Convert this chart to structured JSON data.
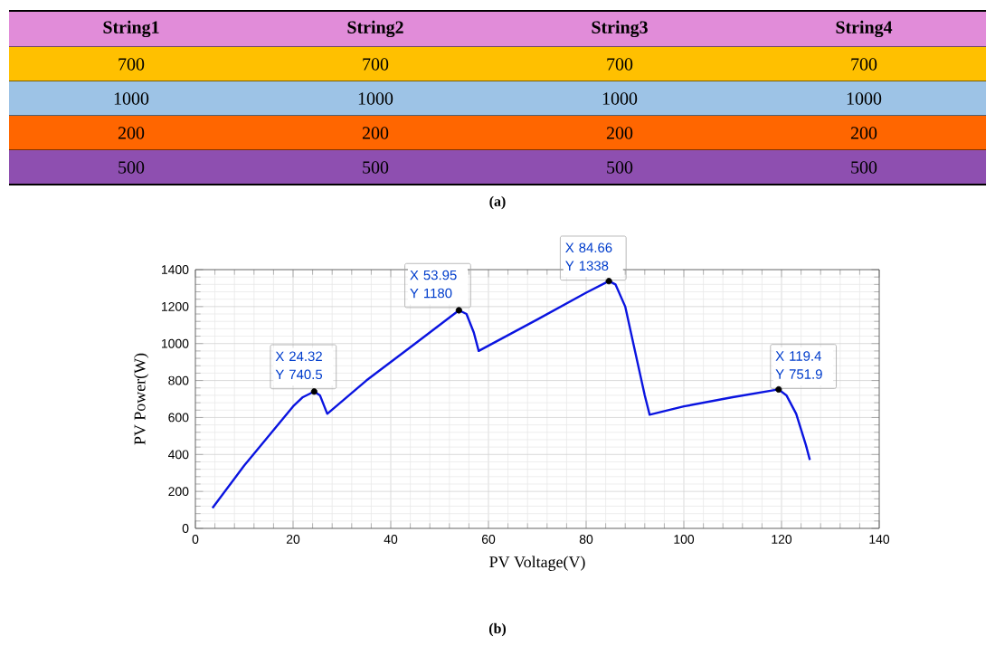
{
  "chart_data": [
    {
      "type": "other",
      "categories": [
        "String1",
        "String2",
        "String3",
        "String4"
      ],
      "annotations": [
        "700",
        "700",
        "700",
        "700",
        "1000",
        "1000",
        "1000",
        "1000",
        "200",
        "200",
        "200",
        "200",
        "500",
        "500",
        "500",
        "500",
        "(a)"
      ],
      "colors": [
        "#e18cd9",
        "#ffc000",
        "#9dc3e6",
        "#ff6600",
        "#8e4fb0"
      ]
    },
    {
      "type": "line",
      "xlabel": "PV Voltage(V)",
      "ylabel": "PV Power(W)",
      "xlim": [
        0,
        140
      ],
      "ylim": [
        0,
        1400
      ],
      "xticks": [
        0,
        20,
        40,
        60,
        80,
        100,
        120,
        140
      ],
      "yticks": [
        0,
        200,
        400,
        600,
        800,
        1000,
        1200,
        1400
      ],
      "grid": true,
      "series": [
        {
          "type": "line",
          "color": "#0a14e0",
          "marker": "none",
          "x": [
            3.5,
            10,
            20,
            22,
            24.32,
            25.5,
            27,
            35,
            45,
            53.95,
            55.5,
            57,
            58,
            70,
            80,
            84.66,
            86,
            88,
            90,
            92,
            93,
            100,
            110,
            119.4,
            121,
            123,
            125,
            125.8
          ],
          "values": [
            110,
            340,
            660,
            710,
            740.5,
            720,
            620,
            800,
            1000,
            1180,
            1160,
            1060,
            960,
            1130,
            1275,
            1338,
            1320,
            1200,
            960,
            720,
            615,
            660,
            710,
            751.9,
            720,
            620,
            450,
            370
          ]
        },
        {
          "type": "scatter",
          "color": "#000000",
          "marker": "circle",
          "x": [
            24.32,
            53.95,
            84.66,
            119.4
          ],
          "values": [
            740.5,
            1180,
            1338,
            751.9
          ]
        }
      ],
      "annotations": [
        {
          "text": "X 24.32",
          "x": 24.32,
          "y": 740.5
        },
        {
          "text": "Y 740.5",
          "x": 24.32,
          "y": 740.5
        },
        {
          "text": "X 53.95",
          "x": 53.95,
          "y": 1180
        },
        {
          "text": "Y 1180",
          "x": 53.95,
          "y": 1180
        },
        {
          "text": "X 84.66",
          "x": 84.66,
          "y": 1338
        },
        {
          "text": "Y 1338",
          "x": 84.66,
          "y": 1338
        },
        {
          "text": "X 119.4",
          "x": 119.4,
          "y": 751.9
        },
        {
          "text": "Y 751.9",
          "x": 119.4,
          "y": 751.9
        },
        "(b)"
      ]
    }
  ]
}
